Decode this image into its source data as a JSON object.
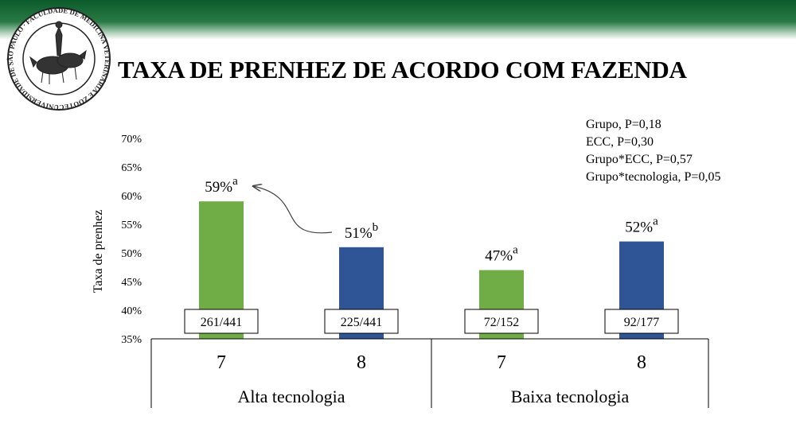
{
  "slide": {
    "title": "TAXA DE PRENHEZ DE ACORDO COM FAZENDA",
    "logo": {
      "name": "usp-fmvz-seal",
      "text": "UNIVERSIDADE DE SÃO PAULO · FACULDADE DE MEDICINA VETERINÁRIA E ZOOTECNIA"
    },
    "stats": [
      "Grupo, P=0,18",
      "ECC, P=0,30",
      "Grupo*ECC, P=0,57",
      "Grupo*tecnologia, P=0,05"
    ],
    "colors": {
      "header_green": "#0b5a2a",
      "bar_green": "#70ad47",
      "bar_blue": "#2f5597"
    }
  },
  "chart_data": {
    "type": "bar",
    "ylabel": "Taxa de prenhez",
    "ylim": [
      35,
      70
    ],
    "ytick_labels": [
      "35%",
      "40%",
      "45%",
      "50%",
      "55%",
      "60%",
      "65%",
      "70%"
    ],
    "ytick_values": [
      35,
      40,
      45,
      50,
      55,
      60,
      65,
      70
    ],
    "groups": [
      "Alta tecnologia",
      "Baixa tecnologia"
    ],
    "bars": [
      {
        "group": "Alta tecnologia",
        "category": "7",
        "value": 59,
        "label": "59%",
        "letter": "a",
        "count": "261/441",
        "color": "#70ad47"
      },
      {
        "group": "Alta tecnologia",
        "category": "8",
        "value": 51,
        "label": "51%",
        "letter": "b",
        "count": "225/441",
        "color": "#2f5597"
      },
      {
        "group": "Baixa tecnologia",
        "category": "7",
        "value": 47,
        "label": "47%",
        "letter": "a",
        "count": "72/152",
        "color": "#70ad47"
      },
      {
        "group": "Baixa tecnologia",
        "category": "8",
        "value": 52,
        "label": "52%",
        "letter": "a",
        "count": "92/177",
        "color": "#2f5597"
      }
    ],
    "annotation": "arrow from 51%b label to 59%a label",
    "grid": false,
    "legend": "none"
  }
}
